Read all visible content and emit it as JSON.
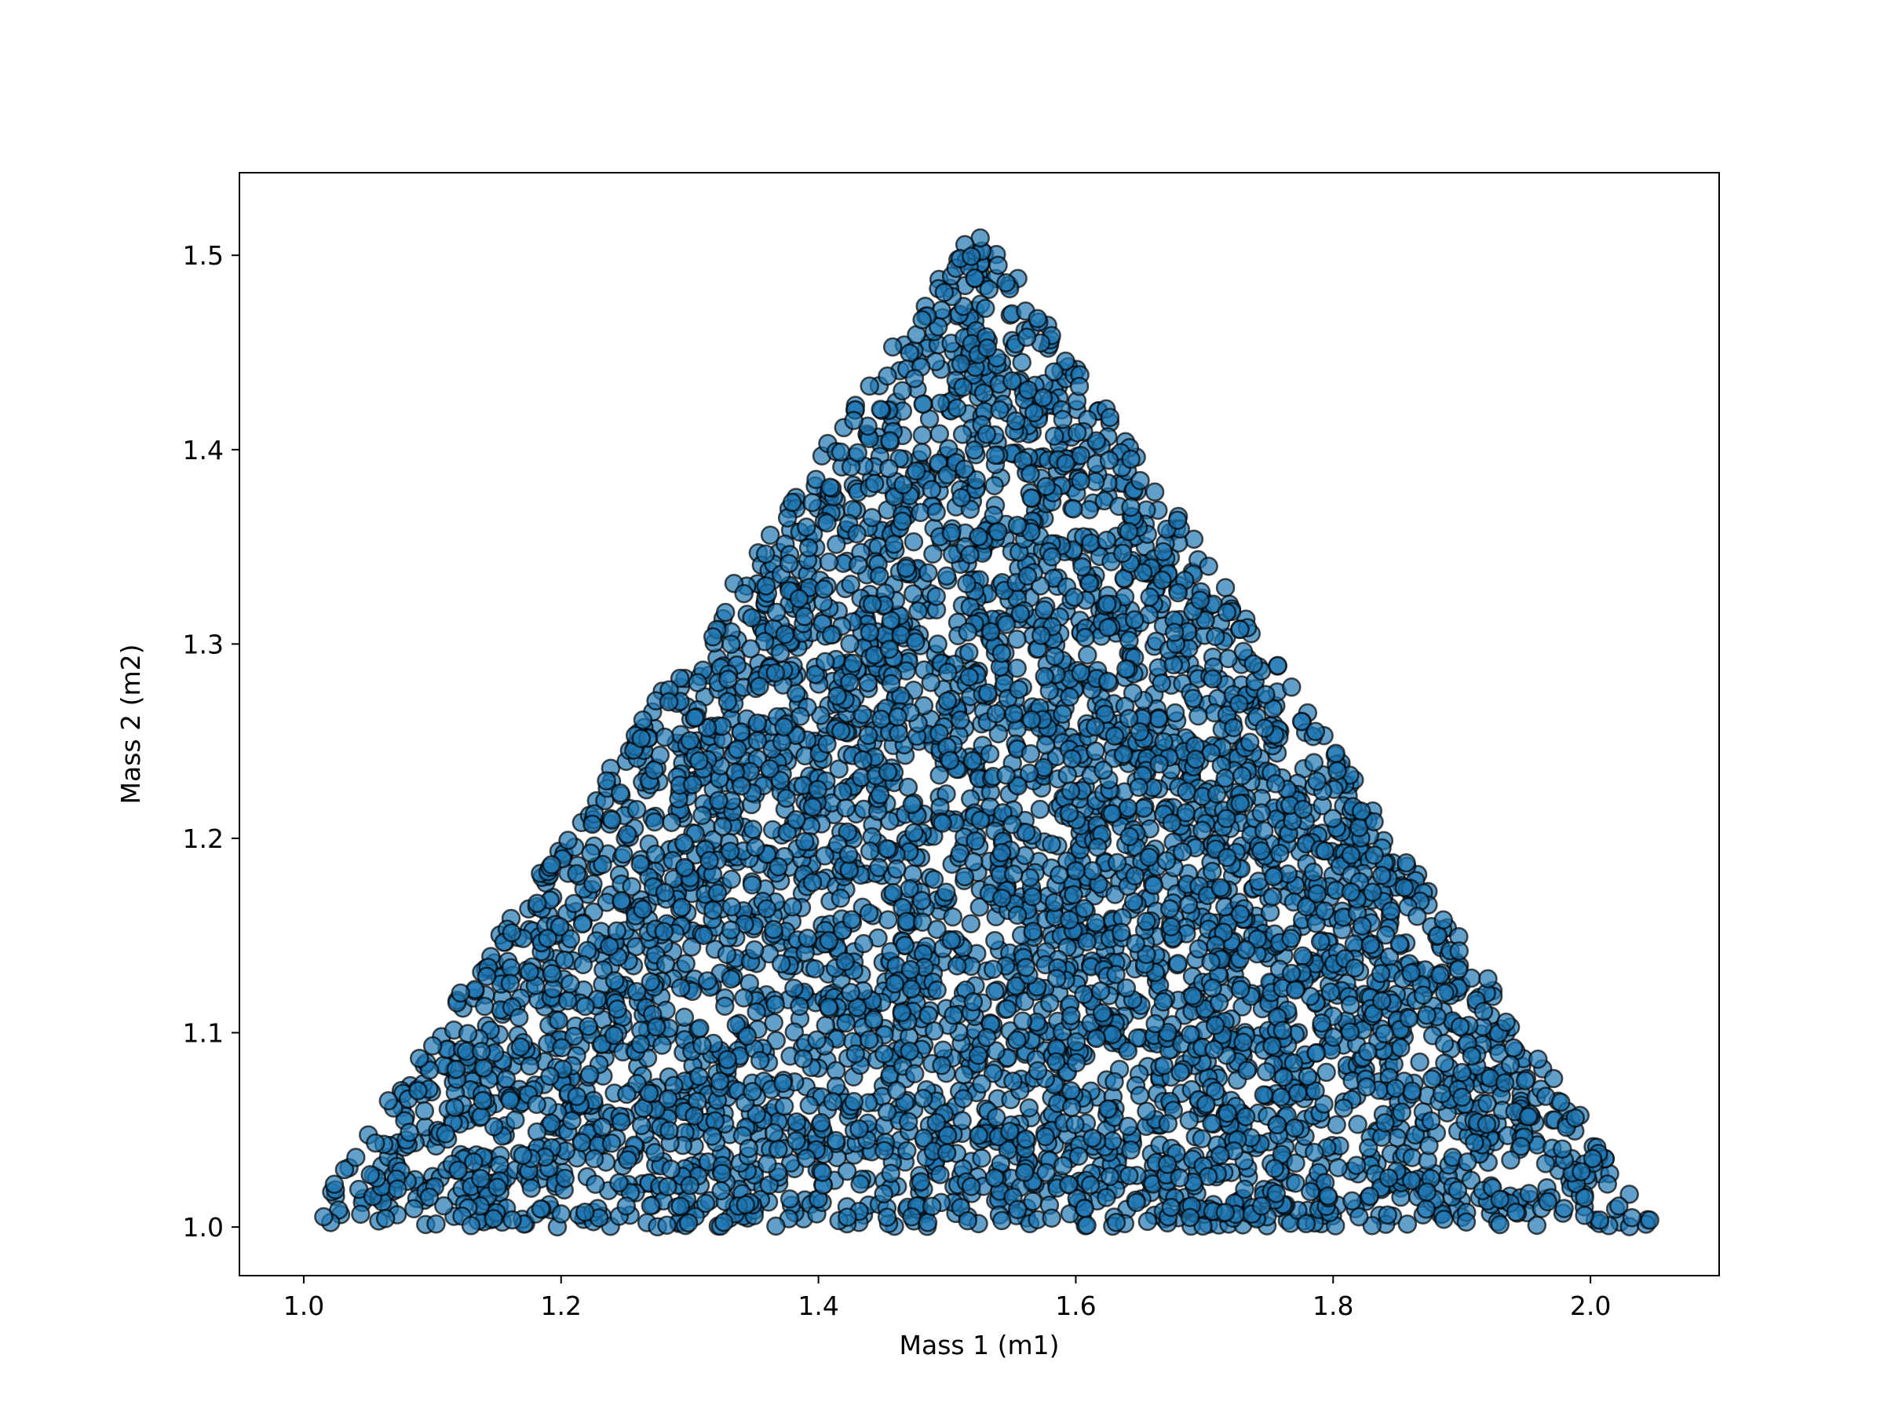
{
  "chart_data": {
    "type": "scatter",
    "title": "",
    "xlabel": "Mass 1 (m1)",
    "ylabel": "Mass 2 (m2)",
    "xlim": [
      0.95,
      2.1
    ],
    "ylim": [
      0.975,
      1.5425
    ],
    "xticks": [
      1.0,
      1.2,
      1.4,
      1.6,
      1.8,
      2.0
    ],
    "xtick_labels": [
      "1.0",
      "1.2",
      "1.4",
      "1.6",
      "1.8",
      "2.0"
    ],
    "yticks": [
      1.0,
      1.1,
      1.2,
      1.3,
      1.4,
      1.5
    ],
    "ytick_labels": [
      "1.0",
      "1.1",
      "1.2",
      "1.3",
      "1.4",
      "1.5"
    ],
    "grid": false,
    "legend": "none",
    "marker": {
      "fill": "#1f77b4",
      "edge": "#000000",
      "alpha": 0.7
    },
    "point_count": 5000,
    "region": {
      "shape": "triangle",
      "vertices": [
        [
          1.0,
          1.0
        ],
        [
          2.05,
          1.0
        ],
        [
          1.525,
          1.52
        ]
      ]
    }
  }
}
